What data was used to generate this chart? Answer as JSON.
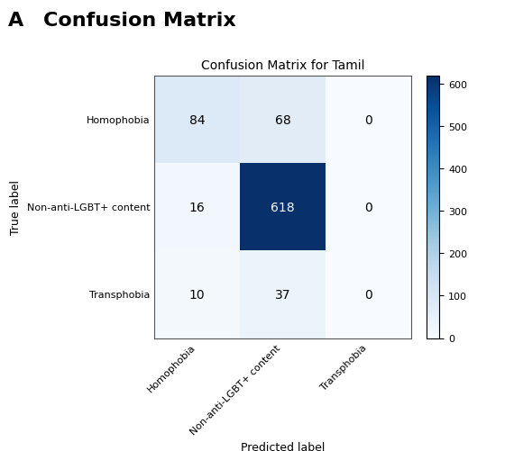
{
  "title": "Confusion Matrix for Tamil",
  "matrix": [
    [
      84,
      68,
      0
    ],
    [
      16,
      618,
      0
    ],
    [
      10,
      37,
      0
    ]
  ],
  "true_labels": [
    "Homophobia",
    "Non-anti-LGBT+ content",
    "Transphobia"
  ],
  "pred_labels": [
    "Homophobia",
    "Non-anti-LGBT+ content",
    "Transphobia"
  ],
  "xlabel": "Predicted label",
  "ylabel": "True label",
  "vmin": 0,
  "vmax": 618,
  "colorbar_ticks": [
    0,
    100,
    200,
    300,
    400,
    500,
    600
  ],
  "cmap_name": "Blues",
  "title_fontsize": 10,
  "label_fontsize": 9,
  "tick_fontsize": 8,
  "annot_fontsize": 10,
  "heading": "A",
  "heading_text": "Confusion Matrix",
  "heading_fontsize": 16,
  "figure_width": 5.7,
  "figure_height": 5.02,
  "dpi": 100
}
